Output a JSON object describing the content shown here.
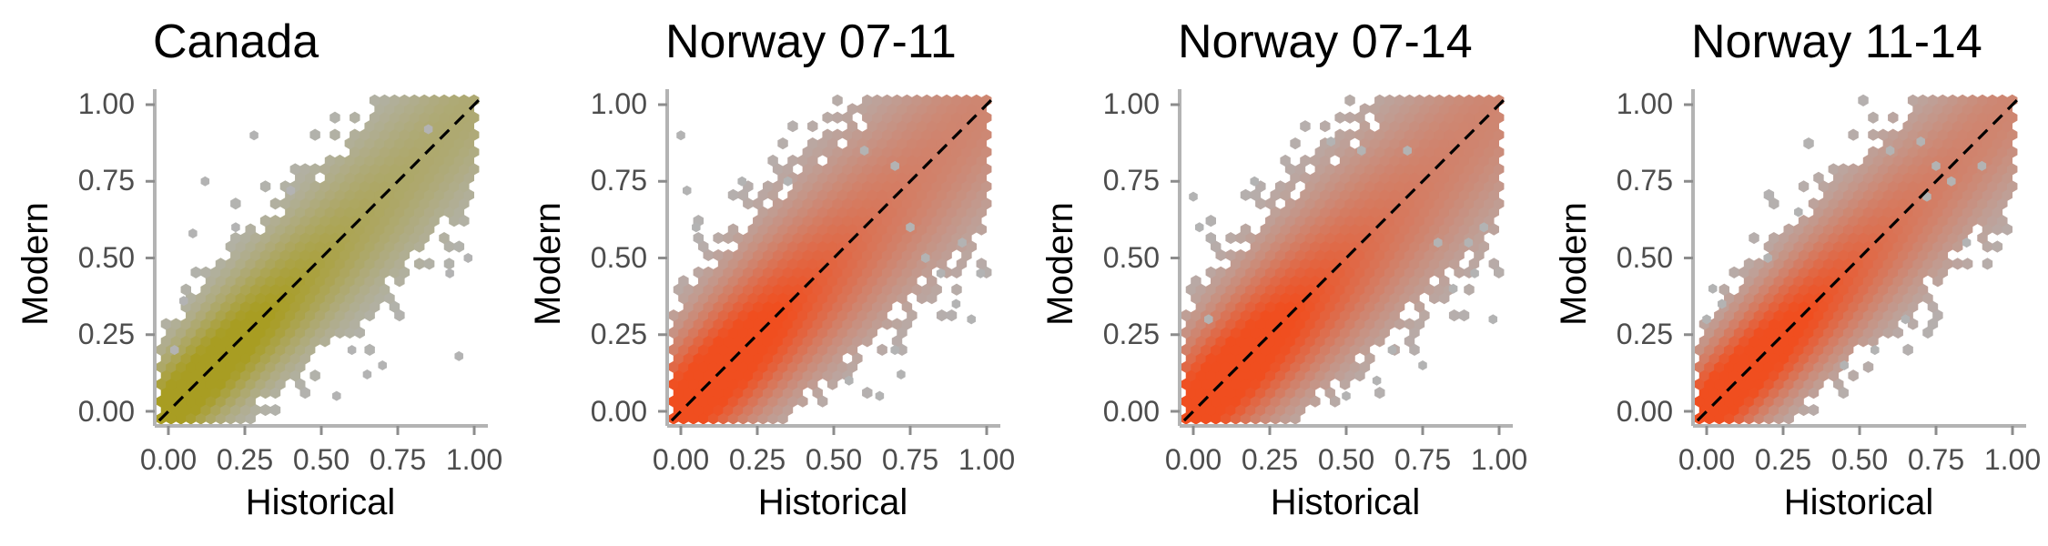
{
  "chart_data": [
    {
      "type": "scatter",
      "title": "Canada",
      "xlabel": "Historical",
      "ylabel": "Modern",
      "xlim": [
        0,
        1
      ],
      "ylim": [
        0,
        1
      ],
      "x_ticks": [
        "0.00",
        "0.25",
        "0.50",
        "0.75",
        "1.00"
      ],
      "y_ticks": [
        "0.00",
        "0.25",
        "0.50",
        "0.75",
        "1.00"
      ],
      "reference_line": "y = x (dashed)",
      "point_style": "hexbin density",
      "high_density_color": "#a89d22",
      "low_density_color": "#b3b3b3",
      "density_spread": 0.085,
      "outliers": [
        [
          0.02,
          0.2
        ],
        [
          0.05,
          0.36
        ],
        [
          0.08,
          0.58
        ],
        [
          0.12,
          0.75
        ],
        [
          0.28,
          0.9
        ],
        [
          0.22,
          0.6
        ],
        [
          0.6,
          0.2
        ],
        [
          0.65,
          0.12
        ],
        [
          0.7,
          0.15
        ],
        [
          0.92,
          0.45
        ],
        [
          0.95,
          0.18
        ],
        [
          0.98,
          0.5
        ],
        [
          0.55,
          0.05
        ],
        [
          0.4,
          0.72
        ],
        [
          0.85,
          0.92
        ]
      ],
      "grid": false,
      "legend": "none"
    },
    {
      "type": "scatter",
      "title": "Norway 07-11",
      "xlabel": "Historical",
      "ylabel": "Modern",
      "xlim": [
        0,
        1
      ],
      "ylim": [
        0,
        1
      ],
      "x_ticks": [
        "0.00",
        "0.25",
        "0.50",
        "0.75",
        "1.00"
      ],
      "y_ticks": [
        "0.00",
        "0.25",
        "0.50",
        "0.75",
        "1.00"
      ],
      "reference_line": "y = x (dashed)",
      "point_style": "hexbin density",
      "high_density_color": "#f04e1f",
      "low_density_color": "#b3b3b3",
      "density_spread": 0.11,
      "outliers": [
        [
          0.0,
          0.9
        ],
        [
          0.02,
          0.72
        ],
        [
          0.05,
          0.6
        ],
        [
          0.2,
          0.75
        ],
        [
          0.35,
          0.75
        ],
        [
          0.7,
          0.8
        ],
        [
          0.75,
          0.6
        ],
        [
          0.8,
          0.5
        ],
        [
          0.85,
          0.45
        ],
        [
          0.9,
          0.35
        ],
        [
          0.92,
          0.55
        ],
        [
          0.95,
          0.3
        ],
        [
          0.98,
          0.45
        ],
        [
          0.55,
          0.1
        ],
        [
          0.65,
          0.05
        ],
        [
          0.7,
          0.2
        ],
        [
          0.6,
          0.85
        ],
        [
          0.72,
          0.12
        ]
      ],
      "grid": false,
      "legend": "none"
    },
    {
      "type": "scatter",
      "title": "Norway 07-14",
      "xlabel": "Historical",
      "ylabel": "Modern",
      "xlim": [
        0,
        1
      ],
      "ylim": [
        0,
        1
      ],
      "x_ticks": [
        "0.00",
        "0.25",
        "0.50",
        "0.75",
        "1.00"
      ],
      "y_ticks": [
        "0.00",
        "0.25",
        "0.50",
        "0.75",
        "1.00"
      ],
      "reference_line": "y = x (dashed)",
      "point_style": "hexbin density",
      "high_density_color": "#f04e1f",
      "low_density_color": "#b3b3b3",
      "density_spread": 0.11,
      "outliers": [
        [
          0.0,
          0.7
        ],
        [
          0.02,
          0.6
        ],
        [
          0.05,
          0.3
        ],
        [
          0.2,
          0.75
        ],
        [
          0.45,
          0.88
        ],
        [
          0.55,
          0.85
        ],
        [
          0.7,
          0.85
        ],
        [
          0.8,
          0.55
        ],
        [
          0.85,
          0.4
        ],
        [
          0.9,
          0.55
        ],
        [
          0.95,
          0.6
        ],
        [
          0.98,
          0.3
        ],
        [
          0.6,
          0.1
        ],
        [
          0.65,
          0.2
        ],
        [
          0.75,
          0.15
        ],
        [
          0.5,
          0.05
        ],
        [
          0.92,
          0.45
        ]
      ],
      "grid": false,
      "legend": "none"
    },
    {
      "type": "scatter",
      "title": "Norway 11-14",
      "xlabel": "Historical",
      "ylabel": "Modern",
      "xlim": [
        0,
        1
      ],
      "ylim": [
        0,
        1
      ],
      "x_ticks": [
        "0.00",
        "0.25",
        "0.50",
        "0.75",
        "1.00"
      ],
      "y_ticks": [
        "0.00",
        "0.25",
        "0.50",
        "0.75",
        "1.00"
      ],
      "reference_line": "y = x (dashed)",
      "point_style": "hexbin density",
      "high_density_color": "#f04e1f",
      "low_density_color": "#b3b3b3",
      "density_spread": 0.09,
      "outliers": [
        [
          0.0,
          0.3
        ],
        [
          0.02,
          0.4
        ],
        [
          0.05,
          0.35
        ],
        [
          0.2,
          0.5
        ],
        [
          0.3,
          0.65
        ],
        [
          0.6,
          0.85
        ],
        [
          0.7,
          0.88
        ],
        [
          0.75,
          0.8
        ],
        [
          0.8,
          0.75
        ],
        [
          0.85,
          0.55
        ],
        [
          0.9,
          0.8
        ],
        [
          0.65,
          0.3
        ],
        [
          0.55,
          0.2
        ],
        [
          0.45,
          0.15
        ],
        [
          0.72,
          0.7
        ]
      ],
      "grid": false,
      "legend": "none"
    }
  ]
}
